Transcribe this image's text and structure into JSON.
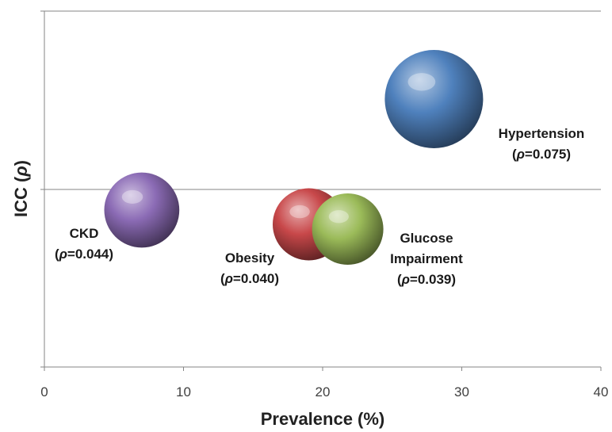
{
  "chart_data": {
    "type": "bubble",
    "xlabel": "Prevalence (%)",
    "ylabel_prefix": "ICC (",
    "ylabel_symbol": "ρ",
    "ylabel_suffix": ")",
    "xlim": [
      0,
      40
    ],
    "x_ticks": [
      "0",
      "10",
      "20",
      "30",
      "40"
    ],
    "gridlines": "horizontal",
    "legend": "none",
    "points": [
      {
        "label_lines": [
          "CKD",
          "(ρ=0.044)"
        ],
        "x": 7.0,
        "size": 0.044,
        "color": "#8b6bb5",
        "label_pos": "left-below"
      },
      {
        "label_lines": [
          "Obesity",
          "(ρ=0.040)"
        ],
        "x": 19.0,
        "size": 0.04,
        "color": "#c8484a",
        "label_pos": "left-below"
      },
      {
        "label_lines": [
          "Glucose",
          "Impairment",
          "(ρ=0.039)"
        ],
        "x": 21.8,
        "size": 0.039,
        "color": "#9bbb59",
        "label_pos": "right-below"
      },
      {
        "label_lines": [
          "Hypertension",
          "(ρ=0.075)"
        ],
        "x": 28.0,
        "size": 0.075,
        "color": "#4f81bd",
        "label_pos": "right"
      }
    ]
  }
}
